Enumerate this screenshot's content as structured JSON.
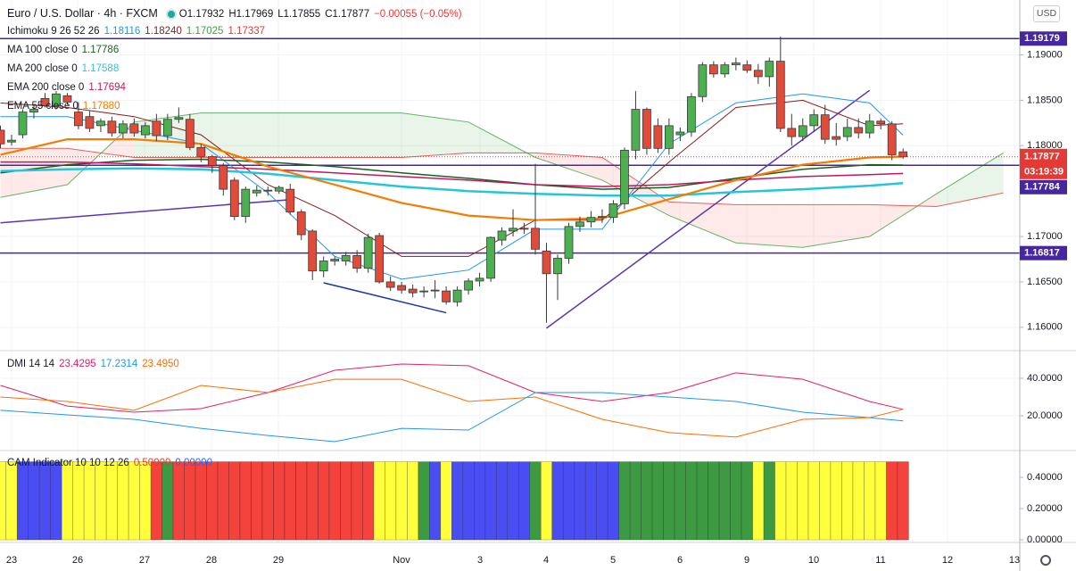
{
  "header": {
    "symbol": "Euro / U.S. Dollar · 4h · FXCM",
    "ohlc": [
      {
        "label": "O",
        "value": "1.17932"
      },
      {
        "label": "H",
        "value": "1.17969"
      },
      {
        "label": "L",
        "value": "1.17855"
      },
      {
        "label": "C",
        "value": "1.17877"
      }
    ],
    "change": "−0.00055 (−0.05%)",
    "change_color": "#e53935",
    "currency": "USD"
  },
  "chart_data": [
    {
      "type": "candlestick",
      "up_color": "#4caf50",
      "down_color": "#e04b3a",
      "ylim": [
        1.15743,
        1.19604
      ],
      "yticks": [
        {
          "value": 1.19,
          "label": "1.19000"
        },
        {
          "value": 1.185,
          "label": "1.18500"
        },
        {
          "value": 1.18,
          "label": "1.18000"
        },
        {
          "value": 1.17,
          "label": "1.17000"
        },
        {
          "value": 1.165,
          "label": "1.16500"
        },
        {
          "value": 1.16,
          "label": "1.16000"
        }
      ],
      "grid": true,
      "x_labels": [
        "23",
        "26",
        "27",
        "28",
        "29",
        "Nov",
        "3",
        "4",
        "5",
        "6",
        "9",
        "10",
        "11",
        "12",
        "13"
      ],
      "candles": [
        [
          1.1817,
          1.1822,
          1.1797,
          1.1802
        ],
        [
          1.1804,
          1.1812,
          1.18,
          1.1806
        ],
        [
          1.1812,
          1.184,
          1.1808,
          1.1837
        ],
        [
          1.1837,
          1.1845,
          1.183,
          1.184
        ],
        [
          1.1852,
          1.1858,
          1.1842,
          1.1844
        ],
        [
          1.1844,
          1.186,
          1.184,
          1.1857
        ],
        [
          1.1855,
          1.1858,
          1.1845,
          1.1848
        ],
        [
          1.1837,
          1.1848,
          1.1818,
          1.1822
        ],
        [
          1.1832,
          1.1838,
          1.1815,
          1.1819
        ],
        [
          1.1822,
          1.183,
          1.1815,
          1.1827
        ],
        [
          1.1827,
          1.1832,
          1.181,
          1.1814
        ],
        [
          1.1814,
          1.1828,
          1.1808,
          1.1824
        ],
        [
          1.1824,
          1.183,
          1.181,
          1.1814
        ],
        [
          1.1812,
          1.1826,
          1.1808,
          1.1822
        ],
        [
          1.1827,
          1.1835,
          1.1805,
          1.1811
        ],
        [
          1.1811,
          1.1835,
          1.1806,
          1.1829
        ],
        [
          1.1829,
          1.1842,
          1.1825,
          1.1831
        ],
        [
          1.1829,
          1.1835,
          1.1795,
          1.1798
        ],
        [
          1.1798,
          1.1802,
          1.1782,
          1.1788
        ],
        [
          1.1788,
          1.179,
          1.177,
          1.1778
        ],
        [
          1.1778,
          1.1781,
          1.1745,
          1.1752
        ],
        [
          1.1762,
          1.1765,
          1.1718,
          1.1722
        ],
        [
          1.1722,
          1.1755,
          1.1715,
          1.1752
        ],
        [
          1.1748,
          1.1756,
          1.1744,
          1.1751
        ],
        [
          1.1751,
          1.1755,
          1.1745,
          1.175
        ],
        [
          1.175,
          1.1756,
          1.1747,
          1.1754
        ],
        [
          1.1752,
          1.1758,
          1.1724,
          1.1727
        ],
        [
          1.1727,
          1.173,
          1.1696,
          1.1702
        ],
        [
          1.1706,
          1.1708,
          1.1652,
          1.1662
        ],
        [
          1.1662,
          1.1678,
          1.1655,
          1.1673
        ],
        [
          1.1673,
          1.1678,
          1.1668,
          1.1675
        ],
        [
          1.1673,
          1.1683,
          1.1668,
          1.1679
        ],
        [
          1.1679,
          1.1685,
          1.166,
          1.1665
        ],
        [
          1.1665,
          1.1703,
          1.166,
          1.1699
        ],
        [
          1.1701,
          1.1704,
          1.1648,
          1.165
        ],
        [
          1.165,
          1.1656,
          1.164,
          1.1644
        ],
        [
          1.1646,
          1.165,
          1.1637,
          1.1641
        ],
        [
          1.1642,
          1.1647,
          1.1633,
          1.1638
        ],
        [
          1.1639,
          1.1645,
          1.1633,
          1.164
        ],
        [
          1.164,
          1.1652,
          1.1632,
          1.1641
        ],
        [
          1.164,
          1.1645,
          1.1625,
          1.1628
        ],
        [
          1.1628,
          1.1645,
          1.1623,
          1.1641
        ],
        [
          1.1641,
          1.1654,
          1.1636,
          1.1651
        ],
        [
          1.1651,
          1.166,
          1.1645,
          1.1654
        ],
        [
          1.1654,
          1.17,
          1.165,
          1.1699
        ],
        [
          1.1696,
          1.171,
          1.169,
          1.1706
        ],
        [
          1.1706,
          1.173,
          1.17,
          1.1709
        ],
        [
          1.1709,
          1.1715,
          1.1703,
          1.1708
        ],
        [
          1.1709,
          1.178,
          1.168,
          1.1686
        ],
        [
          1.1684,
          1.1693,
          1.1605,
          1.1659
        ],
        [
          1.1659,
          1.168,
          1.163,
          1.1676
        ],
        [
          1.1676,
          1.1715,
          1.167,
          1.1711
        ],
        [
          1.1711,
          1.1722,
          1.1705,
          1.1716
        ],
        [
          1.1716,
          1.1728,
          1.171,
          1.1721
        ],
        [
          1.1721,
          1.173,
          1.1715,
          1.1722
        ],
        [
          1.1721,
          1.174,
          1.1715,
          1.1736
        ],
        [
          1.1736,
          1.1798,
          1.173,
          1.1795
        ],
        [
          1.1795,
          1.186,
          1.1785,
          1.184
        ],
        [
          1.184,
          1.1842,
          1.179,
          1.1797
        ],
        [
          1.1822,
          1.183,
          1.1792,
          1.1797
        ],
        [
          1.1797,
          1.183,
          1.179,
          1.1822
        ],
        [
          1.1812,
          1.182,
          1.1805,
          1.1815
        ],
        [
          1.1815,
          1.1858,
          1.181,
          1.1854
        ],
        [
          1.1854,
          1.1892,
          1.1848,
          1.1889
        ],
        [
          1.1889,
          1.1893,
          1.1875,
          1.1879
        ],
        [
          1.1879,
          1.1892,
          1.1875,
          1.1889
        ],
        [
          1.1889,
          1.1897,
          1.1883,
          1.1891
        ],
        [
          1.1889,
          1.1894,
          1.188,
          1.1883
        ],
        [
          1.1883,
          1.189,
          1.1868,
          1.1876
        ],
        [
          1.1876,
          1.1897,
          1.1865,
          1.1893
        ],
        [
          1.1893,
          1.192,
          1.1815,
          1.1819
        ],
        [
          1.1819,
          1.1835,
          1.18,
          1.181
        ],
        [
          1.181,
          1.183,
          1.1805,
          1.1822
        ],
        [
          1.1822,
          1.184,
          1.1815,
          1.1834
        ],
        [
          1.1834,
          1.1845,
          1.1802,
          1.1807
        ],
        [
          1.181,
          1.1825,
          1.18,
          1.1807
        ],
        [
          1.181,
          1.183,
          1.1805,
          1.182
        ],
        [
          1.182,
          1.183,
          1.1808,
          1.1814
        ],
        [
          1.1814,
          1.1835,
          1.1808,
          1.1827
        ],
        [
          1.1827,
          1.183,
          1.1818,
          1.1824
        ],
        [
          1.1824,
          1.1827,
          1.1784,
          1.179
        ],
        [
          1.17932,
          1.17969,
          1.17855,
          1.17877
        ]
      ],
      "overlay_x": [
        0,
        6,
        12,
        18,
        24,
        30,
        36,
        42,
        48,
        54,
        60,
        66,
        72,
        78,
        81
      ],
      "ichimoku": {
        "name": "Ichimoku 9 26 52 26",
        "lines": [
          {
            "color": "#2196f3",
            "legend_value": "1.18116",
            "values": [
              1.1832,
              1.1832,
              1.1817,
              1.1802,
              1.1748,
              1.1678,
              1.1653,
              1.1663,
              1.1708,
              1.1708,
              1.1802,
              1.1847,
              1.1857,
              1.1847,
              1.18116
            ]
          },
          {
            "color": "#8b1a1a",
            "legend_value": "1.18240",
            "values": [
              1.1847,
              1.1842,
              1.1832,
              1.1812,
              1.1757,
              1.1723,
              1.1678,
              1.1678,
              1.1718,
              1.1718,
              1.1782,
              1.1842,
              1.185,
              1.1822,
              1.1824
            ]
          }
        ],
        "cloud_x": [
          0,
          6,
          12,
          18,
          24,
          30,
          36,
          42,
          48,
          54,
          60,
          66,
          72,
          78,
          84,
          90
        ],
        "spans": [
          {
            "color": "#43a047",
            "legend_value": "1.17025",
            "values": [
              1.1743,
              1.1757,
              1.1826,
              1.1836,
              1.1836,
              1.1836,
              1.1836,
              1.1826,
              1.1787,
              1.1762,
              1.1723,
              1.1693,
              1.1688,
              1.17,
              1.1747,
              1.1792
            ]
          },
          {
            "color": "#e53935",
            "legend_value": "1.17337",
            "values": [
              1.1797,
              1.1797,
              1.1787,
              1.1787,
              1.1787,
              1.1787,
              1.1787,
              1.1792,
              1.1792,
              1.1787,
              1.1738,
              1.1735,
              1.1735,
              1.1735,
              1.1733,
              1.1748
            ]
          }
        ],
        "cloud_colors": [
          "rgba(76,175,80,0.13)",
          "rgba(244,67,54,0.11)"
        ]
      },
      "overlays": [
        {
          "name": "MA 100 close 0",
          "legend_value": "1.17786",
          "color": "#1b5e20",
          "width": 1.5,
          "values": [
            1.177,
            1.1779,
            1.1784,
            1.1785,
            1.1782,
            1.1777,
            1.177,
            1.1764,
            1.1757,
            1.1752,
            1.1754,
            1.1764,
            1.1774,
            1.1779,
            1.17786
          ]
        },
        {
          "name": "MA 200 close 0",
          "legend_value": "1.17588",
          "color": "#26c6da",
          "width": 2.5,
          "values": [
            1.1772,
            1.1774,
            1.1775,
            1.1774,
            1.1769,
            1.1762,
            1.1755,
            1.175,
            1.1747,
            1.1745,
            1.1745,
            1.1749,
            1.1752,
            1.1756,
            1.17588
          ]
        },
        {
          "name": "EMA 200 close 0",
          "legend_value": "1.17694",
          "color": "#c2185b",
          "width": 1.5,
          "values": [
            1.1782,
            1.1782,
            1.178,
            1.1777,
            1.1774,
            1.177,
            1.1766,
            1.1762,
            1.1757,
            1.1755,
            1.1757,
            1.1762,
            1.1766,
            1.1768,
            1.17694
          ]
        },
        {
          "name": "EMA 55 close 0",
          "legend_value": "1.17880",
          "color": "#f57c00",
          "width": 2.2,
          "values": [
            1.179,
            1.1807,
            1.1807,
            1.1802,
            1.1777,
            1.1757,
            1.1737,
            1.1723,
            1.1718,
            1.172,
            1.1741,
            1.1762,
            1.1779,
            1.1787,
            1.1788
          ]
        }
      ],
      "levels": [
        1.19179,
        1.17784,
        1.16817
      ],
      "level_color": "#4527a0",
      "trendlines": [
        {
          "color": "#5e35b1",
          "points": [
            [
              0,
              1.1715
            ],
            [
              26.4,
              1.1741
            ]
          ]
        },
        {
          "color": "#5e35b1",
          "points": [
            [
              49,
              1.1599
            ],
            [
              78,
              1.1861
            ]
          ]
        },
        {
          "color": "#1a3a9c",
          "points": [
            [
              29,
              1.1649
            ],
            [
              40,
              1.1616
            ]
          ]
        }
      ],
      "last_price": 1.17877,
      "last_color": "#e53935",
      "countdown": "03:19:39"
    },
    {
      "type": "line",
      "title": "DMI 14 14",
      "x": [
        0,
        6,
        12,
        18,
        24,
        30,
        36,
        42,
        48,
        54,
        60,
        66,
        72,
        78,
        81
      ],
      "ylim": [
        1.43,
        54.29
      ],
      "yticks": [
        {
          "value": 40,
          "label": "40.0000"
        },
        {
          "value": 20,
          "label": "20.0000"
        }
      ],
      "series": [
        {
          "color": "#e91e63",
          "legend_value": "23.4295",
          "values": [
            36.2,
            25.2,
            21.9,
            23.8,
            32.4,
            44.3,
            47.6,
            46.7,
            32.4,
            27.6,
            32.4,
            42.9,
            39.5,
            27.6,
            23.4295
          ]
        },
        {
          "color": "#2196f3",
          "legend_value": "17.2314",
          "values": [
            22.9,
            20.5,
            18.1,
            13.3,
            9.5,
            6.2,
            13.3,
            12.4,
            32.4,
            32.4,
            30,
            27.6,
            21.9,
            19,
            17.2314
          ]
        },
        {
          "color": "#ff6d00",
          "legend_value": "23.4950",
          "values": [
            30,
            27.6,
            22.9,
            36.2,
            32.4,
            39.5,
            39.5,
            27.6,
            30,
            18.1,
            11,
            8.6,
            18.1,
            19,
            23.495
          ]
        }
      ]
    },
    {
      "type": "bar",
      "title": "CAM Indicator 10 10 12 26",
      "legend_values": [
        {
          "text": "0.50000",
          "color": "#e53935"
        },
        {
          "text": "0.00000",
          "color": "#2962ff"
        }
      ],
      "ylim": [
        -0.017,
        0.566
      ],
      "yticks": [
        {
          "value": 0.4,
          "label": "0.40000"
        },
        {
          "value": 0.2,
          "label": "0.20000"
        },
        {
          "value": 0,
          "label": "0.00000"
        }
      ],
      "palette": {
        "y": "#ffff3b",
        "b": "#4a4ef2",
        "r": "#f4433c",
        "g": "#3d9a42"
      },
      "states": [
        "y",
        "y",
        "b",
        "b",
        "b",
        "b",
        "y",
        "y",
        "y",
        "y",
        "y",
        "y",
        "y",
        "y",
        "r",
        "g",
        "r",
        "r",
        "r",
        "r",
        "r",
        "r",
        "r",
        "r",
        "r",
        "r",
        "r",
        "r",
        "r",
        "r",
        "r",
        "r",
        "r",
        "r",
        "y",
        "y",
        "y",
        "y",
        "g",
        "b",
        "y",
        "b",
        "b",
        "b",
        "b",
        "b",
        "b",
        "b",
        "g",
        "y",
        "b",
        "b",
        "b",
        "b",
        "b",
        "b",
        "g",
        "g",
        "g",
        "g",
        "g",
        "g",
        "g",
        "g",
        "g",
        "g",
        "g",
        "g",
        "y",
        "g",
        "y",
        "y",
        "y",
        "y",
        "y",
        "y",
        "y",
        "y",
        "y",
        "y",
        "r",
        "r"
      ],
      "values": [
        0.5,
        0.5,
        0.5,
        0.5,
        0.5,
        0.5,
        0.5,
        0.5,
        0.5,
        0.5,
        0.5,
        0.5,
        0.5,
        0.5,
        0.5,
        0.5,
        0.5,
        0.5,
        0.5,
        0.5,
        0.5,
        0.5,
        0.5,
        0.5,
        0.5,
        0.5,
        0.5,
        0.5,
        0.5,
        0.5,
        0.5,
        0.5,
        0.5,
        0.5,
        0.5,
        0.5,
        0.5,
        0.5,
        0.5,
        0.5,
        0.5,
        0.5,
        0.5,
        0.5,
        0.5,
        0.5,
        0.5,
        0.5,
        0.5,
        0.5,
        0.5,
        0.5,
        0.5,
        0.5,
        0.5,
        0.5,
        0.5,
        0.5,
        0.5,
        0.5,
        0.5,
        0.5,
        0.5,
        0.5,
        0.5,
        0.5,
        0.5,
        0.5,
        0.5,
        0.5,
        0.5,
        0.5,
        0.5,
        0.5,
        0.5,
        0.5,
        0.5,
        0.5,
        0.5,
        0.5,
        0.5,
        0.5
      ]
    }
  ]
}
